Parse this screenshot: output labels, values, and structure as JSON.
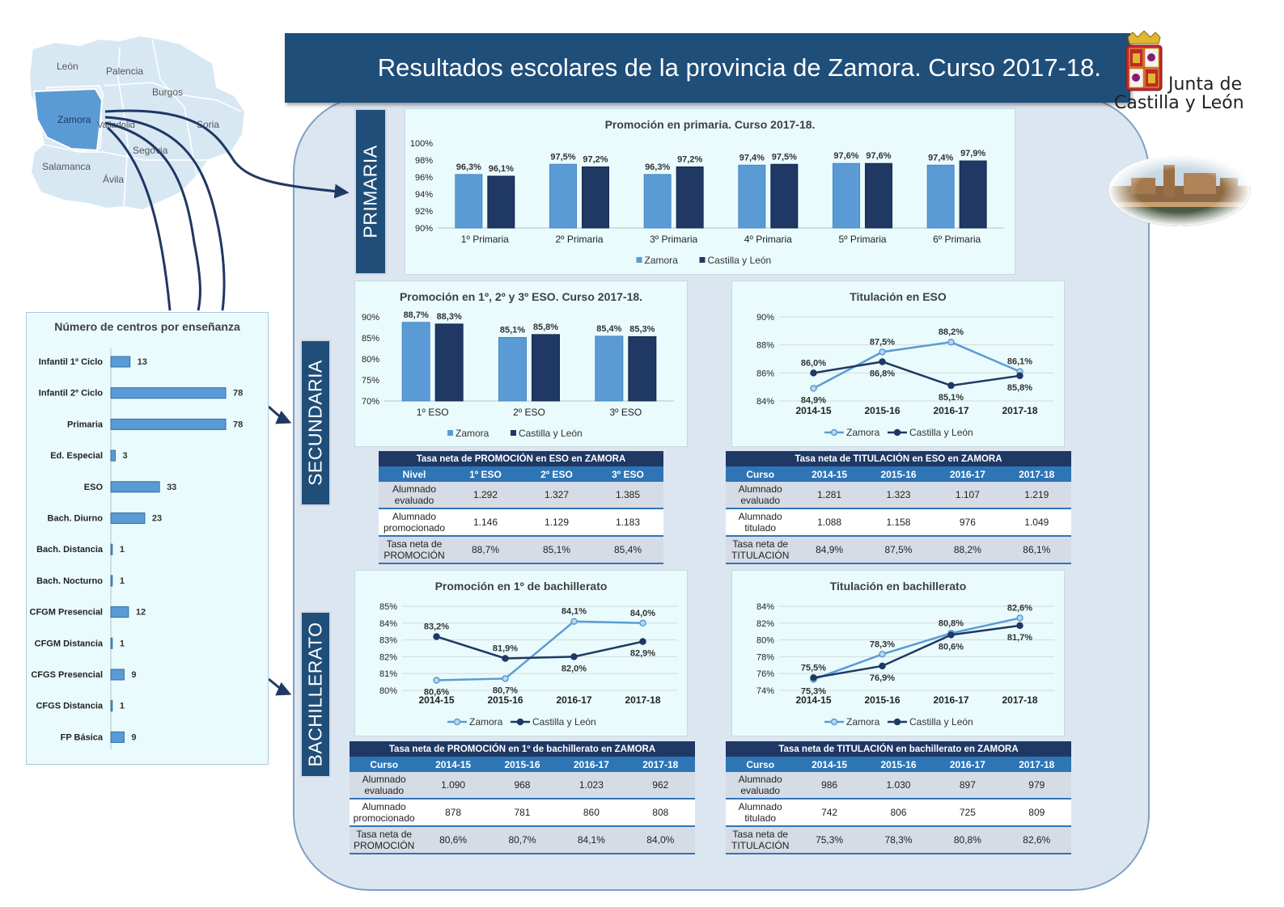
{
  "title": "Resultados escolares de la provincia de Zamora. Curso 2017-18.",
  "logo": {
    "line1": "Junta de",
    "line2": "Castilla y León"
  },
  "map": {
    "provinces": [
      "León",
      "Palencia",
      "Burgos",
      "Zamora",
      "Valladolid",
      "Soria",
      "Segovia",
      "Salamanca",
      "Ávila"
    ]
  },
  "colors": {
    "zamora": "#5b9bd5",
    "cyl": "#1f3864",
    "header": "#1f4e79",
    "panel": "#dce6f1"
  },
  "sections": {
    "primaria": "PRIMARIA",
    "secundaria": "SECUNDARIA",
    "bachillerato": "BACHILLERATO"
  },
  "legend": {
    "zamora": "Zamora",
    "cyl": "Castilla y León"
  },
  "chart_data": [
    {
      "id": "centros",
      "type": "bar",
      "orientation": "horizontal",
      "title": "Número de centros por enseñanza",
      "categories": [
        "Infantil 1º Ciclo",
        "Infantil 2º Ciclo",
        "Primaria",
        "Ed. Especial",
        "ESO",
        "Bach. Diurno",
        "Bach. Distancia",
        "Bach. Nocturno",
        "CFGM Presencial",
        "CFGM Distancia",
        "CFGS Presencial",
        "CFGS Distancia",
        "FP Básica"
      ],
      "values": [
        13,
        78,
        78,
        3,
        33,
        23,
        1,
        1,
        12,
        1,
        9,
        1,
        9
      ]
    },
    {
      "id": "primaria",
      "type": "bar",
      "title": "Promoción en primaria. Curso 2017-18.",
      "categories": [
        "1º Primaria",
        "2º Primaria",
        "3º Primaria",
        "4º Primaria",
        "5º Primaria",
        "6º Primaria"
      ],
      "ylim": [
        90,
        100
      ],
      "yticks": [
        "90%",
        "92%",
        "94%",
        "96%",
        "98%",
        "100%"
      ],
      "series": [
        {
          "name": "Zamora",
          "values": [
            96.3,
            97.5,
            96.3,
            97.4,
            97.6,
            97.4
          ],
          "labels": [
            "96,3%",
            "97,5%",
            "96,3%",
            "97,4%",
            "97,6%",
            "97,4%"
          ]
        },
        {
          "name": "Castilla y León",
          "values": [
            96.1,
            97.2,
            97.2,
            97.5,
            97.6,
            97.9
          ],
          "labels": [
            "96,1%",
            "97,2%",
            "97,2%",
            "97,5%",
            "97,6%",
            "97,9%"
          ]
        }
      ]
    },
    {
      "id": "eso_prom",
      "type": "bar",
      "title": "Promoción en 1º, 2º y 3º ESO. Curso 2017-18.",
      "categories": [
        "1º ESO",
        "2º ESO",
        "3º ESO"
      ],
      "ylim": [
        70,
        90
      ],
      "yticks": [
        "70%",
        "75%",
        "80%",
        "85%",
        "90%"
      ],
      "series": [
        {
          "name": "Zamora",
          "values": [
            88.7,
            85.1,
            85.4
          ],
          "labels": [
            "88,7%",
            "85,1%",
            "85,4%"
          ]
        },
        {
          "name": "Castilla y León",
          "values": [
            88.3,
            85.8,
            85.3
          ],
          "labels": [
            "88,3%",
            "85,8%",
            "85,3%"
          ]
        }
      ]
    },
    {
      "id": "eso_tit",
      "type": "line",
      "title": "Titulación en ESO",
      "categories": [
        "2014-15",
        "2015-16",
        "2016-17",
        "2017-18"
      ],
      "ylim": [
        84,
        90
      ],
      "yticks": [
        "84%",
        "86%",
        "88%",
        "90%"
      ],
      "series": [
        {
          "name": "Zamora",
          "values": [
            84.9,
            87.5,
            88.2,
            86.1
          ],
          "labels": [
            "84,9%",
            "87,5%",
            "88,2%",
            "86,1%"
          ]
        },
        {
          "name": "Castilla y León",
          "values": [
            86.0,
            86.8,
            85.1,
            85.8
          ],
          "labels": [
            "86,0%",
            "86,8%",
            "85,1%",
            "85,8%"
          ]
        }
      ]
    },
    {
      "id": "bach_prom",
      "type": "line",
      "title": "Promoción en 1º de bachillerato",
      "categories": [
        "2014-15",
        "2015-16",
        "2016-17",
        "2017-18"
      ],
      "ylim": [
        80,
        85
      ],
      "yticks": [
        "80%",
        "81%",
        "82%",
        "83%",
        "84%",
        "85%"
      ],
      "series": [
        {
          "name": "Zamora",
          "values": [
            80.6,
            80.7,
            84.1,
            84.0
          ],
          "labels": [
            "80,6%",
            "80,7%",
            "84,1%",
            "84,0%"
          ]
        },
        {
          "name": "Castilla y León",
          "values": [
            83.2,
            81.9,
            82.0,
            82.9
          ],
          "labels": [
            "83,2%",
            "81,9%",
            "82,0%",
            "82,9%"
          ]
        }
      ]
    },
    {
      "id": "bach_tit",
      "type": "line",
      "title": "Titulación en bachillerato",
      "categories": [
        "2014-15",
        "2015-16",
        "2016-17",
        "2017-18"
      ],
      "ylim": [
        74,
        84
      ],
      "yticks": [
        "74%",
        "76%",
        "78%",
        "80%",
        "82%",
        "84%"
      ],
      "series": [
        {
          "name": "Zamora",
          "values": [
            75.3,
            78.3,
            80.8,
            82.6
          ],
          "labels": [
            "75,3%",
            "78,3%",
            "80,8%",
            "82,6%"
          ]
        },
        {
          "name": "Castilla y León",
          "values": [
            75.5,
            76.9,
            80.6,
            81.7
          ],
          "labels": [
            "75,5%",
            "76,9%",
            "80,6%",
            "81,7%"
          ]
        }
      ]
    }
  ],
  "tables": {
    "eso_prom": {
      "title": "Tasa neta de PROMOCIÓN en ESO en ZAMORA",
      "header": [
        "Nivel",
        "1º ESO",
        "2º ESO",
        "3º ESO"
      ],
      "rows": [
        {
          "label": [
            "Alumnado",
            "evaluado"
          ],
          "values": [
            "1.292",
            "1.327",
            "1.385"
          ]
        },
        {
          "label": [
            "Alumnado",
            "promocionado"
          ],
          "values": [
            "1.146",
            "1.129",
            "1.183"
          ]
        },
        {
          "label": [
            "Tasa neta de",
            "PROMOCIÓN"
          ],
          "values": [
            "88,7%",
            "85,1%",
            "85,4%"
          ]
        }
      ]
    },
    "eso_tit": {
      "title": "Tasa neta de TITULACIÓN en ESO en ZAMORA",
      "header": [
        "Curso",
        "2014-15",
        "2015-16",
        "2016-17",
        "2017-18"
      ],
      "rows": [
        {
          "label": [
            "Alumnado",
            "evaluado"
          ],
          "values": [
            "1.281",
            "1.323",
            "1.107",
            "1.219"
          ]
        },
        {
          "label": [
            "Alumnado",
            "titulado"
          ],
          "values": [
            "1.088",
            "1.158",
            "976",
            "1.049"
          ]
        },
        {
          "label": [
            "Tasa neta de",
            "TITULACIÓN"
          ],
          "values": [
            "84,9%",
            "87,5%",
            "88,2%",
            "86,1%"
          ]
        }
      ]
    },
    "bach_prom": {
      "title": "Tasa neta de PROMOCIÓN en 1º de bachillerato en ZAMORA",
      "header": [
        "Curso",
        "2014-15",
        "2015-16",
        "2016-17",
        "2017-18"
      ],
      "rows": [
        {
          "label": [
            "Alumnado",
            "evaluado"
          ],
          "values": [
            "1.090",
            "968",
            "1.023",
            "962"
          ]
        },
        {
          "label": [
            "Alumnado",
            "promocionado"
          ],
          "values": [
            "878",
            "781",
            "860",
            "808"
          ]
        },
        {
          "label": [
            "Tasa neta de",
            "PROMOCIÓN"
          ],
          "values": [
            "80,6%",
            "80,7%",
            "84,1%",
            "84,0%"
          ]
        }
      ]
    },
    "bach_tit": {
      "title": "Tasa neta de TITULACIÓN en bachillerato en ZAMORA",
      "header": [
        "Curso",
        "2014-15",
        "2015-16",
        "2016-17",
        "2017-18"
      ],
      "rows": [
        {
          "label": [
            "Alumnado",
            "evaluado"
          ],
          "values": [
            "986",
            "1.030",
            "897",
            "979"
          ]
        },
        {
          "label": [
            "Alumnado",
            "titulado"
          ],
          "values": [
            "742",
            "806",
            "725",
            "809"
          ]
        },
        {
          "label": [
            "Tasa neta de",
            "TITULACIÓN"
          ],
          "values": [
            "75,3%",
            "78,3%",
            "80,8%",
            "82,6%"
          ]
        }
      ]
    }
  }
}
